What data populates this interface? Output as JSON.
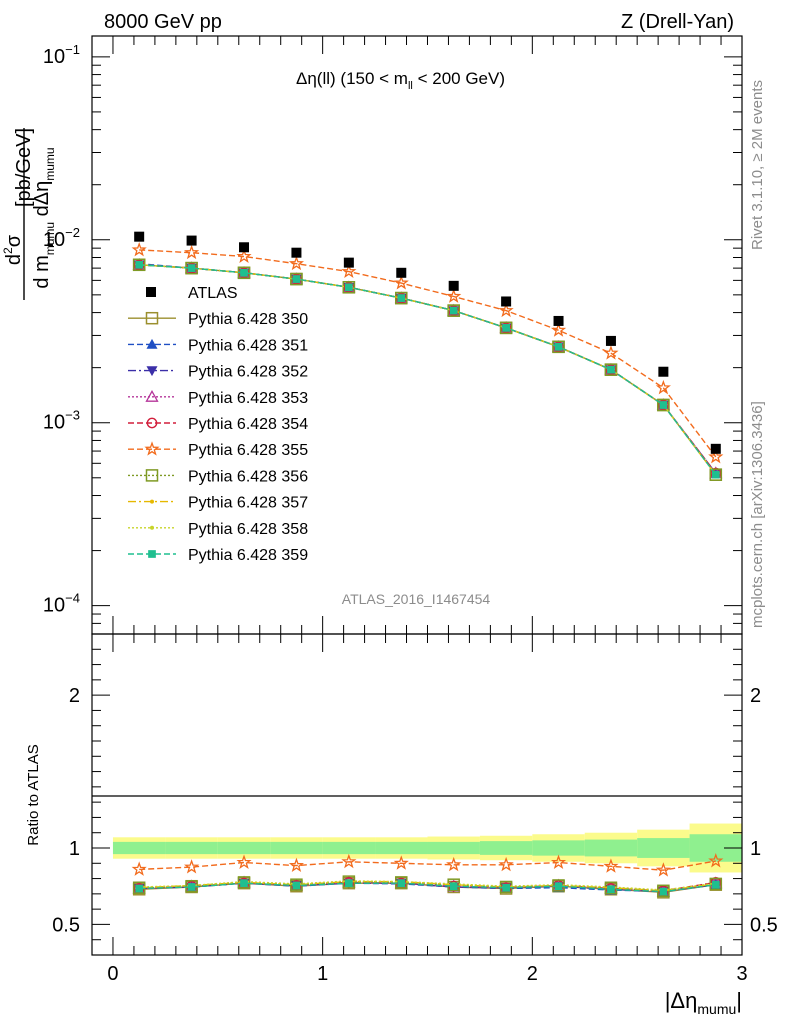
{
  "header": {
    "energy_label": "8000 GeV pp",
    "process_label": "Z (Drell-Yan)",
    "plot_title": "Δη(ll) (150 < m",
    "plot_title_sub": "ll",
    "plot_title_tail": " < 200 GeV)",
    "analysis_id": "ATLAS_2016_I1467454",
    "side_label_top": "Rivet 3.1.10, ≥ 2M events",
    "side_label_bottom": "mcplots.cern.ch [arXiv:1306.3436]"
  },
  "axes": {
    "y_main_label": "d²σ / d m_mumu dΔη_mumu [pb/GeV]",
    "y_ratio_label": "Ratio to ATLAS",
    "x_label": "|Δη_mumu|",
    "y_main_ticks": [
      "10",
      "10",
      "10",
      "10"
    ],
    "y_main_tick_exps": [
      "−1",
      "−2",
      "−3",
      "−4"
    ],
    "y_ratio_ticks": [
      "0.5",
      "1",
      "2"
    ],
    "x_ticks": [
      "0",
      "1",
      "2",
      "3"
    ]
  },
  "chart_data": {
    "type": "scatter",
    "x_scale": "linear",
    "y_scale": "log",
    "xlim": [
      -0.1,
      3.0
    ],
    "ylim": [
      7e-05,
      0.13
    ],
    "ratio_ylim": [
      0.3,
      2.4
    ],
    "x": [
      0.125,
      0.375,
      0.625,
      0.875,
      1.125,
      1.375,
      1.625,
      1.875,
      2.125,
      2.375,
      2.625,
      2.875
    ],
    "bin_edges": [
      0.0,
      0.25,
      0.5,
      0.75,
      1.0,
      1.25,
      1.5,
      1.75,
      2.0,
      2.25,
      2.5,
      2.75,
      3.0
    ],
    "data": {
      "name": "ATLAS",
      "values": [
        0.0104,
        0.0099,
        0.0091,
        0.0085,
        0.0075,
        0.0066,
        0.0056,
        0.0046,
        0.0036,
        0.0028,
        0.0019,
        0.00072
      ],
      "ratio_band_inner": [
        0.04,
        0.04,
        0.04,
        0.04,
        0.04,
        0.04,
        0.04,
        0.045,
        0.05,
        0.055,
        0.065,
        0.09
      ],
      "ratio_band_outer": [
        0.07,
        0.07,
        0.07,
        0.07,
        0.07,
        0.07,
        0.075,
        0.08,
        0.09,
        0.1,
        0.12,
        0.16
      ]
    },
    "series": [
      {
        "name": "Pythia 6.428 350",
        "color": "#9b8f2e",
        "marker": "open-square",
        "dash": "",
        "values": [
          0.0073,
          0.007,
          0.0066,
          0.0061,
          0.0055,
          0.0048,
          0.0041,
          0.0033,
          0.0026,
          0.00195,
          0.00125,
          0.00052
        ],
        "ratio": [
          0.73,
          0.745,
          0.77,
          0.75,
          0.77,
          0.77,
          0.745,
          0.735,
          0.75,
          0.73,
          0.71,
          0.76
        ]
      },
      {
        "name": "Pythia 6.428 351",
        "color": "#1f4fc4",
        "marker": "filled-triangle-up",
        "dash": "6,3",
        "values": [
          0.0074,
          0.007,
          0.0066,
          0.0061,
          0.0055,
          0.0048,
          0.0041,
          0.0033,
          0.0026,
          0.00195,
          0.00125,
          0.00053
        ],
        "ratio": [
          0.735,
          0.745,
          0.77,
          0.75,
          0.77,
          0.765,
          0.745,
          0.735,
          0.74,
          0.725,
          0.715,
          0.76
        ]
      },
      {
        "name": "Pythia 6.428 352",
        "color": "#3b2fa8",
        "marker": "filled-triangle-down",
        "dash": "8,3,2,3",
        "values": [
          0.0073,
          0.007,
          0.0066,
          0.0061,
          0.0055,
          0.0048,
          0.0041,
          0.0033,
          0.0026,
          0.00195,
          0.00125,
          0.00053
        ],
        "ratio": [
          0.735,
          0.745,
          0.77,
          0.755,
          0.77,
          0.77,
          0.745,
          0.74,
          0.75,
          0.73,
          0.715,
          0.76
        ]
      },
      {
        "name": "Pythia 6.428 353",
        "color": "#b5359a",
        "marker": "open-triangle-up",
        "dash": "2,2",
        "values": [
          0.0073,
          0.007,
          0.0066,
          0.0061,
          0.0055,
          0.0048,
          0.0041,
          0.0033,
          0.0026,
          0.00195,
          0.00125,
          0.00053
        ],
        "ratio": [
          0.735,
          0.75,
          0.775,
          0.755,
          0.775,
          0.77,
          0.75,
          0.74,
          0.755,
          0.735,
          0.715,
          0.77
        ]
      },
      {
        "name": "Pythia 6.428 354",
        "color": "#d21f3c",
        "marker": "open-circle",
        "dash": "6,3",
        "values": [
          0.0073,
          0.007,
          0.0066,
          0.0061,
          0.0055,
          0.0048,
          0.0041,
          0.0033,
          0.0026,
          0.00195,
          0.00125,
          0.00053
        ],
        "ratio": [
          0.735,
          0.75,
          0.77,
          0.755,
          0.775,
          0.77,
          0.75,
          0.74,
          0.755,
          0.735,
          0.72,
          0.775
        ]
      },
      {
        "name": "Pythia 6.428 355",
        "color": "#f26b1d",
        "marker": "open-star",
        "dash": "6,3",
        "values": [
          0.0088,
          0.0085,
          0.0081,
          0.0074,
          0.0067,
          0.0058,
          0.0049,
          0.0041,
          0.0032,
          0.0024,
          0.00155,
          0.00065
        ],
        "ratio": [
          0.86,
          0.875,
          0.905,
          0.885,
          0.91,
          0.9,
          0.89,
          0.89,
          0.905,
          0.88,
          0.855,
          0.915
        ]
      },
      {
        "name": "Pythia 6.428 356",
        "color": "#7f9a24",
        "marker": "open-square",
        "dash": "2,2",
        "values": [
          0.0073,
          0.007,
          0.0066,
          0.0061,
          0.0055,
          0.0048,
          0.0041,
          0.0033,
          0.0026,
          0.00195,
          0.00125,
          0.00052
        ],
        "ratio": [
          0.74,
          0.75,
          0.775,
          0.76,
          0.78,
          0.775,
          0.76,
          0.745,
          0.755,
          0.74,
          0.72,
          0.765
        ]
      },
      {
        "name": "Pythia 6.428 357",
        "color": "#e6b800",
        "marker": "small-dot",
        "dash": "8,3,2,3",
        "values": [
          0.0073,
          0.007,
          0.0066,
          0.0061,
          0.0055,
          0.0048,
          0.0041,
          0.0033,
          0.0026,
          0.00195,
          0.00125,
          0.00052
        ],
        "ratio": [
          0.74,
          0.755,
          0.775,
          0.76,
          0.78,
          0.78,
          0.76,
          0.745,
          0.755,
          0.74,
          0.72,
          0.765
        ]
      },
      {
        "name": "Pythia 6.428 358",
        "color": "#c8d42a",
        "marker": "small-dot",
        "dash": "2,2",
        "values": [
          0.0073,
          0.007,
          0.0066,
          0.0061,
          0.0055,
          0.0048,
          0.0041,
          0.0033,
          0.0026,
          0.00195,
          0.00125,
          0.00052
        ],
        "ratio": [
          0.745,
          0.755,
          0.78,
          0.765,
          0.785,
          0.78,
          0.765,
          0.75,
          0.76,
          0.745,
          0.725,
          0.77
        ]
      },
      {
        "name": "Pythia 6.428 359",
        "color": "#1fbf8f",
        "marker": "filled-square-small",
        "dash": "6,3",
        "values": [
          0.0073,
          0.007,
          0.0066,
          0.0061,
          0.0055,
          0.0048,
          0.0041,
          0.0033,
          0.0026,
          0.00195,
          0.00125,
          0.00052
        ],
        "ratio": [
          0.735,
          0.745,
          0.77,
          0.755,
          0.77,
          0.77,
          0.75,
          0.74,
          0.75,
          0.73,
          0.715,
          0.76
        ]
      }
    ]
  }
}
